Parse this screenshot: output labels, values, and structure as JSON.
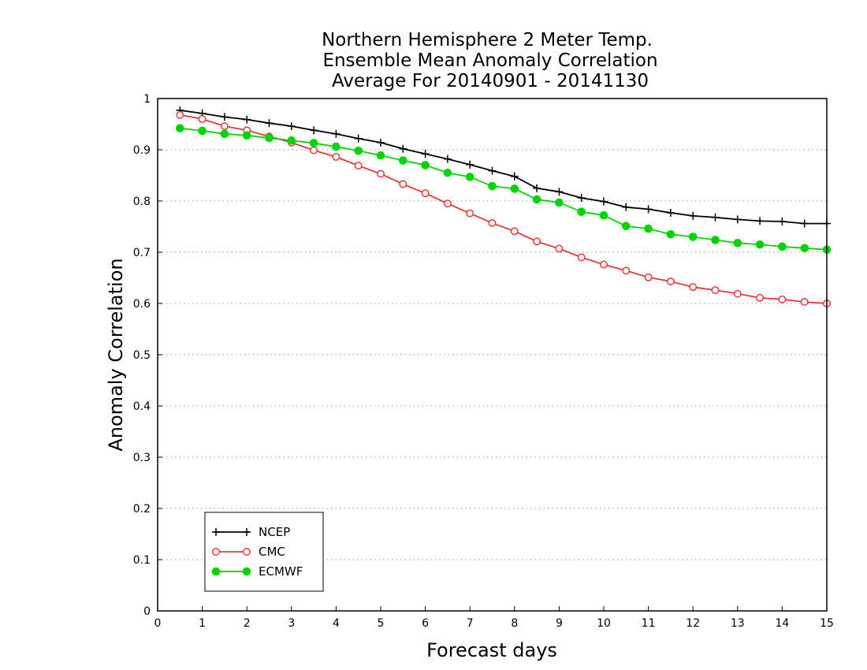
{
  "chart_data": {
    "type": "line",
    "title_lines": [
      "Northern Hemisphere 2 Meter Temp.",
      "Ensemble Mean Anomaly Correlation",
      "Average For 20140901 - 20141130"
    ],
    "xlabel": "Forecast days",
    "ylabel": "Anomaly Correlation",
    "xlim": [
      0,
      15
    ],
    "ylim": [
      0,
      1
    ],
    "x_ticks": [
      "0",
      "1",
      "2",
      "3",
      "4",
      "5",
      "6",
      "7",
      "8",
      "9",
      "10",
      "11",
      "12",
      "13",
      "14",
      "15"
    ],
    "y_ticks": [
      "0",
      "0.1",
      "0.2",
      "0.3",
      "0.4",
      "0.5",
      "0.6",
      "0.7",
      "0.8",
      "0.9",
      "1"
    ],
    "grid": "horizontal dotted",
    "legend_position": "bottom-left",
    "x": [
      0.5,
      1,
      1.5,
      2,
      2.5,
      3,
      3.5,
      4,
      4.5,
      5,
      5.5,
      6,
      6.5,
      7,
      7.5,
      8,
      8.5,
      9,
      9.5,
      10,
      10.5,
      11,
      11.5,
      12,
      12.5,
      13,
      13.5,
      14,
      14.5,
      15
    ],
    "series": [
      {
        "name": "NCEP",
        "color": "#000000",
        "marker": "plus",
        "values": [
          0.977,
          0.971,
          0.964,
          0.959,
          0.952,
          0.946,
          0.938,
          0.931,
          0.922,
          0.914,
          0.902,
          0.892,
          0.882,
          0.871,
          0.859,
          0.848,
          0.825,
          0.818,
          0.806,
          0.799,
          0.788,
          0.784,
          0.777,
          0.771,
          0.768,
          0.764,
          0.761,
          0.76,
          0.756,
          0.756
        ]
      },
      {
        "name": "CMC",
        "color": "#e8373c",
        "marker": "open-circle",
        "values": [
          0.968,
          0.96,
          0.946,
          0.938,
          0.926,
          0.914,
          0.899,
          0.886,
          0.869,
          0.853,
          0.833,
          0.815,
          0.795,
          0.776,
          0.757,
          0.741,
          0.721,
          0.707,
          0.69,
          0.676,
          0.664,
          0.651,
          0.643,
          0.632,
          0.626,
          0.619,
          0.611,
          0.608,
          0.603,
          0.6
        ]
      },
      {
        "name": "ECMWF",
        "color": "#00d400",
        "marker": "filled-circle",
        "values": [
          0.942,
          0.937,
          0.931,
          0.928,
          0.923,
          0.918,
          0.913,
          0.906,
          0.898,
          0.889,
          0.879,
          0.87,
          0.855,
          0.847,
          0.829,
          0.824,
          0.803,
          0.797,
          0.779,
          0.772,
          0.751,
          0.746,
          0.735,
          0.73,
          0.724,
          0.718,
          0.715,
          0.711,
          0.708,
          0.705
        ]
      }
    ]
  }
}
